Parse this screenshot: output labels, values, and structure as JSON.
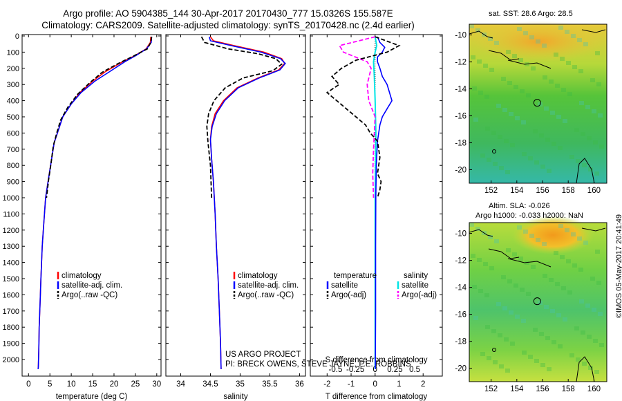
{
  "header": {
    "line1": "Argo profile: AO 5904385_144 30-Apr-2017 20170430_777 15.0326S 155.587E",
    "line2": "Climatology: CARS2009. Satellite-adjusted climatology: synTS_20170428.nc (2.4d earlier)"
  },
  "colors": {
    "climatology": "#ff0000",
    "satellite": "#0000ff",
    "argo": "#000000",
    "sal_satellite": "#00e5e5",
    "sal_argo": "#ff00ff"
  },
  "chart_data": [
    {
      "type": "line",
      "xlabel": "temperature (deg C)",
      "ylabel": "",
      "xlim": [
        -1.5,
        31
      ],
      "ylim": [
        2070,
        0
      ],
      "xticks": [
        "0",
        "5",
        "10",
        "15",
        "20",
        "25",
        "30"
      ],
      "xtick_values": [
        0,
        5,
        10,
        15,
        20,
        25,
        30
      ],
      "yticks": [
        "0",
        "100",
        "200",
        "300",
        "400",
        "500",
        "600",
        "700",
        "800",
        "900",
        "1000",
        "1100",
        "1200",
        "1300",
        "1400",
        "1500",
        "1600",
        "1700",
        "1800",
        "1900",
        "2000"
      ],
      "ytick_values": [
        0,
        100,
        200,
        300,
        400,
        500,
        600,
        700,
        800,
        900,
        1000,
        1100,
        1200,
        1300,
        1400,
        1500,
        1600,
        1700,
        1800,
        1900,
        2000
      ],
      "legend": [
        "climatology",
        "satellite-adj. clim.",
        "Argo(..raw -QC)"
      ],
      "series": [
        {
          "name": "climatology",
          "x": [
            28.6,
            28.5,
            27.5,
            25,
            22,
            18,
            15,
            12,
            10,
            8,
            7,
            6,
            5.4,
            4.7,
            4,
            3.6,
            3.2,
            2.9,
            2.7,
            2.5,
            2.4,
            2.3,
            2.25
          ],
          "y": [
            5,
            40,
            80,
            120,
            160,
            220,
            280,
            350,
            420,
            500,
            580,
            660,
            760,
            880,
            1000,
            1150,
            1300,
            1500,
            1650,
            1800,
            1950,
            2040,
            2060
          ]
        },
        {
          "name": "satellite-adj. clim.",
          "x": [
            28.8,
            28.7,
            27.6,
            25.2,
            22.5,
            19,
            15.5,
            12.3,
            10,
            8,
            7,
            6,
            5.4,
            4.7,
            4,
            3.6,
            3.2,
            2.9,
            2.7,
            2.5,
            2.4,
            2.3,
            2.25
          ],
          "y": [
            5,
            40,
            80,
            120,
            160,
            220,
            280,
            350,
            420,
            500,
            580,
            660,
            760,
            880,
            1000,
            1150,
            1300,
            1500,
            1650,
            1800,
            1950,
            2040,
            2060
          ]
        },
        {
          "name": "Argo(..raw -QC)",
          "x": [
            28.8,
            28.6,
            27.8,
            24.5,
            21,
            17.2,
            14.5,
            11.5,
            9.2,
            7.5,
            6.6,
            5.8,
            5.3,
            4.7,
            4.2
          ],
          "y": [
            5,
            40,
            80,
            125,
            170,
            225,
            285,
            360,
            440,
            520,
            600,
            680,
            780,
            890,
            1000
          ]
        }
      ]
    },
    {
      "type": "line",
      "xlabel": "salinity",
      "ylabel": "",
      "xlim": [
        33.75,
        36.1
      ],
      "ylim": [
        2070,
        0
      ],
      "xticks": [
        "34",
        "34.5",
        "35",
        "35.5",
        "36"
      ],
      "xtick_values": [
        34,
        34.5,
        35,
        35.5,
        36
      ],
      "legend": [
        "climatology",
        "satellite-adj. clim.",
        "Argo(..raw -QC)"
      ],
      "annotation": [
        "US ARGO PROJECT",
        "PI: BRECK OWENS, STEVE JAYNE, P.E. ROBBINS"
      ],
      "series": [
        {
          "name": "climatology",
          "x": [
            34.5,
            34.55,
            34.9,
            35.4,
            35.7,
            35.75,
            35.65,
            35.3,
            34.95,
            34.72,
            34.58,
            34.52,
            34.5,
            34.52,
            34.55,
            34.58,
            34.6,
            34.63,
            34.65,
            34.67,
            34.68
          ],
          "y": [
            5,
            30,
            60,
            100,
            140,
            170,
            210,
            260,
            320,
            400,
            480,
            560,
            640,
            760,
            900,
            1100,
            1300,
            1500,
            1700,
            1900,
            2060
          ]
        },
        {
          "name": "satellite-adj. clim.",
          "x": [
            34.48,
            34.5,
            34.85,
            35.35,
            35.68,
            35.76,
            35.67,
            35.32,
            34.97,
            34.74,
            34.6,
            34.53,
            34.5,
            34.52,
            34.55,
            34.58,
            34.6,
            34.63,
            34.65,
            34.67,
            34.68
          ],
          "y": [
            5,
            30,
            60,
            100,
            140,
            170,
            210,
            260,
            320,
            400,
            480,
            560,
            640,
            760,
            900,
            1100,
            1300,
            1500,
            1700,
            1900,
            2060
          ]
        },
        {
          "name": "Argo(..raw -QC)",
          "x": [
            34.35,
            34.4,
            34.8,
            35.3,
            35.6,
            35.7,
            35.55,
            35.05,
            34.75,
            34.56,
            34.47,
            34.44,
            34.46,
            34.5,
            34.52
          ],
          "y": [
            5,
            40,
            80,
            110,
            140,
            175,
            215,
            260,
            320,
            400,
            480,
            560,
            660,
            800,
            1000
          ]
        }
      ]
    },
    {
      "type": "line",
      "xlabel": "T difference from climatology",
      "xlabel_top": "S difference from climatology",
      "xlim": [
        -2.7,
        2.8
      ],
      "ylim": [
        2070,
        0
      ],
      "xticks": [
        "-2",
        "-1",
        "0",
        "1",
        "2"
      ],
      "xtick_values": [
        -2,
        -1,
        0,
        1,
        2
      ],
      "sticks": [
        "-0.5",
        "-0.25",
        "0",
        "0.25",
        "0.5"
      ],
      "stick_values": [
        -0.5,
        -0.25,
        0,
        0.25,
        0.5
      ],
      "legend_headers": [
        "temperature",
        "salinity"
      ],
      "legend": [
        "satellite",
        "Argo(-adj)",
        "satellite",
        "Argo(-adj)"
      ],
      "series": [
        {
          "name": "T satellite",
          "x": [
            0.1,
            0.2,
            0.4,
            0.3,
            0.1,
            0.1,
            0.2,
            0.3,
            0.5,
            0.6,
            0.7,
            0.5,
            0.3,
            0.2,
            0.1,
            0.05,
            0.03,
            0.02,
            0.02,
            0.01
          ],
          "y": [
            5,
            40,
            70,
            100,
            130,
            160,
            200,
            250,
            300,
            350,
            400,
            450,
            500,
            550,
            650,
            800,
            1000,
            1300,
            1700,
            2060
          ]
        },
        {
          "name": "T Argo(-adj)",
          "x": [
            0,
            1,
            0.5,
            -0.8,
            -1.4,
            -1.8,
            -1.5,
            -2,
            -1.6,
            -1.2,
            -0.8,
            -0.4,
            -0.2,
            0.1,
            0.2,
            0.1,
            0.25,
            0.2,
            0.1
          ],
          "y": [
            5,
            60,
            100,
            150,
            200,
            250,
            300,
            350,
            400,
            450,
            500,
            550,
            600,
            650,
            750,
            850,
            900,
            950,
            1000
          ]
        },
        {
          "name": "S satellite",
          "x": [
            0,
            0.02,
            0,
            -0.02,
            -0.01,
            0,
            0.01,
            0,
            0,
            0
          ],
          "y": [
            5,
            60,
            100,
            160,
            250,
            400,
            600,
            1000,
            1500,
            2060
          ]
        },
        {
          "name": "S Argo(-adj)",
          "x": [
            0,
            -0.45,
            -0.4,
            -0.1,
            -0.05,
            -0.1,
            -0.08,
            0,
            -0.02,
            -0.03,
            -0.02
          ],
          "y": [
            5,
            60,
            100,
            160,
            200,
            300,
            400,
            500,
            700,
            850,
            1000
          ]
        }
      ]
    },
    {
      "type": "heatmap",
      "title": "sat. SST: 28.6 Argo: 28.5",
      "xticks": [
        "152",
        "154",
        "156",
        "158",
        "160"
      ],
      "xtick_values": [
        152,
        154,
        156,
        158,
        160
      ],
      "yticks": [
        "-10",
        "-12",
        "-14",
        "-16",
        "-18",
        "-20"
      ],
      "ytick_values": [
        -10,
        -12,
        -14,
        -16,
        -18,
        -20
      ],
      "xlim": [
        150.3,
        161
      ],
      "ylim": [
        -21,
        -9.2
      ],
      "marker": {
        "lon": 155.587,
        "lat": -15.0326
      }
    },
    {
      "type": "heatmap",
      "title": "Altim. SLA: -0.026",
      "subtitle": "Argo h1000: -0.033 h2000: NaN",
      "xticks": [
        "152",
        "154",
        "156",
        "158",
        "160"
      ],
      "xtick_values": [
        152,
        154,
        156,
        158,
        160
      ],
      "yticks": [
        "-10",
        "-12",
        "-14",
        "-16",
        "-18",
        "-20"
      ],
      "ytick_values": [
        -10,
        -12,
        -14,
        -16,
        -18,
        -20
      ],
      "xlim": [
        150.3,
        161
      ],
      "ylim": [
        -21,
        -9.2
      ],
      "marker": {
        "lon": 155.587,
        "lat": -15.0326
      }
    }
  ],
  "credit": "©IMOS 05-May-2017 20:41:49"
}
